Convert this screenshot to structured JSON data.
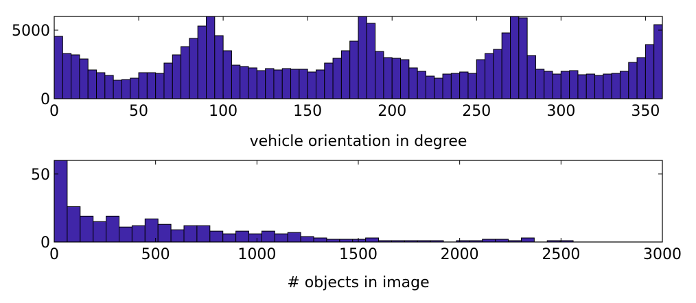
{
  "chart_data": [
    {
      "type": "bar",
      "xlabel": "vehicle orientation in degree",
      "ylabel": "",
      "xlim": [
        0,
        360
      ],
      "ylim": [
        0,
        6000
      ],
      "xticks": [
        0,
        50,
        100,
        150,
        200,
        250,
        300,
        350
      ],
      "yticks": [
        0,
        5000
      ],
      "bin_width": 5,
      "bar_color": "#4026a8",
      "values": [
        4550,
        3300,
        3200,
        2900,
        2100,
        1900,
        1700,
        1350,
        1400,
        1500,
        1900,
        1900,
        1850,
        2600,
        3200,
        3800,
        4400,
        5300,
        6000,
        4600,
        3500,
        2450,
        2350,
        2250,
        2050,
        2200,
        2100,
        2200,
        2150,
        2150,
        1950,
        2100,
        2600,
        2950,
        3500,
        4200,
        6000,
        5500,
        3450,
        3000,
        2950,
        2850,
        2250,
        2000,
        1650,
        1500,
        1800,
        1850,
        1950,
        1850,
        2850,
        3300,
        3600,
        4800,
        6000,
        5900,
        3150,
        2150,
        2000,
        1800,
        2000,
        2050,
        1750,
        1800,
        1700,
        1800,
        1850,
        2000,
        2650,
        3000,
        3950,
        5400
      ]
    },
    {
      "type": "bar",
      "xlabel": "# objects in image",
      "ylabel": "",
      "xlim": [
        0,
        3000
      ],
      "ylim": [
        0,
        60
      ],
      "xticks": [
        0,
        500,
        1000,
        1500,
        2000,
        2500,
        3000
      ],
      "yticks": [
        0,
        50
      ],
      "bin_width": 64,
      "bar_color": "#4026a8",
      "values": [
        60,
        26,
        19,
        15,
        19,
        11,
        12,
        17,
        13,
        9,
        12,
        12,
        8,
        6,
        8,
        6,
        8,
        6,
        7,
        4,
        3,
        2,
        2,
        2,
        3,
        1,
        1,
        1,
        1,
        1,
        0,
        1,
        1,
        2,
        2,
        1,
        3,
        0,
        1,
        1,
        0,
        0,
        0,
        0,
        0,
        0,
        0
      ]
    }
  ]
}
